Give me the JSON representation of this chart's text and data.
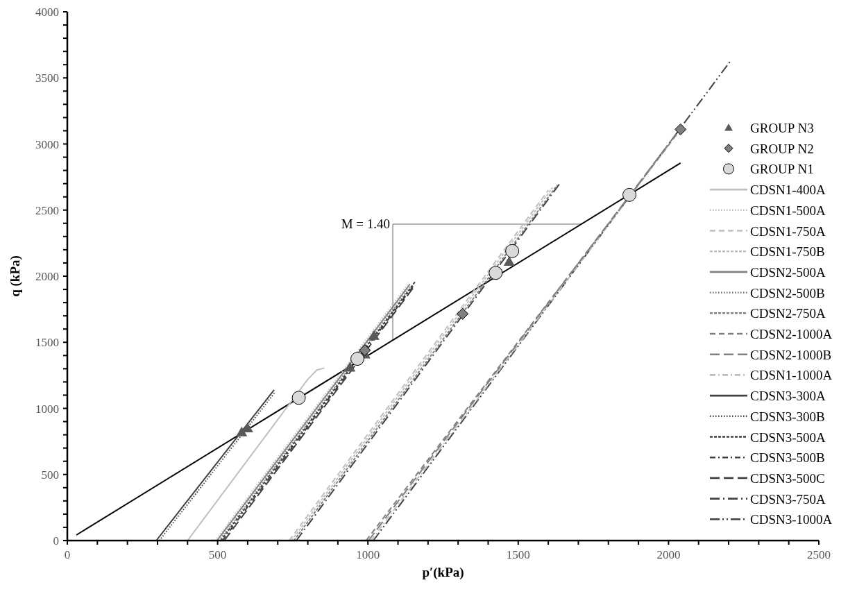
{
  "chart_data": {
    "type": "line",
    "xlabel": "p′(kPa)",
    "ylabel": "q (kPa)",
    "xlim": [
      0,
      2500
    ],
    "ylim": [
      0,
      4000
    ],
    "xticks": [
      0,
      {
        "value": 100,
        "label": null
      },
      {
        "value": 200,
        "label": null
      },
      {
        "value": 300,
        "label": null
      },
      {
        "value": 400,
        "label": null
      },
      500,
      {
        "value": 600,
        "label": null
      },
      {
        "value": 700,
        "label": null
      },
      {
        "value": 800,
        "label": null
      },
      {
        "value": 900,
        "label": null
      },
      1000,
      {
        "value": 1100,
        "label": null
      },
      {
        "value": 1200,
        "label": null
      },
      {
        "value": 1300,
        "label": null
      },
      {
        "value": 1400,
        "label": null
      },
      1500,
      {
        "value": 1600,
        "label": null
      },
      {
        "value": 1700,
        "label": null
      },
      {
        "value": 1800,
        "label": null
      },
      {
        "value": 1900,
        "label": null
      },
      2000,
      {
        "value": 2100,
        "label": null
      },
      {
        "value": 2200,
        "label": null
      },
      {
        "value": 2300,
        "label": null
      },
      {
        "value": 2400,
        "label": null
      },
      2500
    ],
    "yticks": [
      0,
      {
        "value": 100,
        "label": null
      },
      {
        "value": 200,
        "label": null
      },
      {
        "value": 300,
        "label": null
      },
      {
        "value": 400,
        "label": null
      },
      500,
      {
        "value": 600,
        "label": null
      },
      {
        "value": 700,
        "label": null
      },
      {
        "value": 800,
        "label": null
      },
      {
        "value": 900,
        "label": null
      },
      1000,
      {
        "value": 1100,
        "label": null
      },
      {
        "value": 1200,
        "label": null
      },
      {
        "value": 1300,
        "label": null
      },
      {
        "value": 1400,
        "label": null
      },
      1500,
      {
        "value": 1600,
        "label": null
      },
      {
        "value": 1700,
        "label": null
      },
      {
        "value": 1800,
        "label": null
      },
      {
        "value": 1900,
        "label": null
      },
      2000,
      {
        "value": 2100,
        "label": null
      },
      {
        "value": 2200,
        "label": null
      },
      {
        "value": 2300,
        "label": null
      },
      {
        "value": 2400,
        "label": null
      },
      2500,
      {
        "value": 2600,
        "label": null
      },
      {
        "value": 2700,
        "label": null
      },
      {
        "value": 2800,
        "label": null
      },
      {
        "value": 2900,
        "label": null
      },
      3000,
      {
        "value": 3100,
        "label": null
      },
      {
        "value": 3200,
        "label": null
      },
      {
        "value": 3300,
        "label": null
      },
      {
        "value": 3400,
        "label": null
      },
      3500,
      {
        "value": 3600,
        "label": null
      },
      {
        "value": 3700,
        "label": null
      },
      {
        "value": 3800,
        "label": null
      },
      {
        "value": 3900,
        "label": null
      },
      4000
    ],
    "grid": false,
    "legend": "right",
    "annotations": [
      "M = 1.40"
    ],
    "series": [
      {
        "name": "GROUP N3",
        "type": "scatter",
        "marker": "triangle",
        "color": "#595959",
        "x": [
          580,
          600,
          940,
          990,
          1020,
          1470
        ],
        "values": [
          820,
          850,
          1310,
          1410,
          1550,
          2110
        ]
      },
      {
        "name": "GROUP N2",
        "type": "scatter",
        "marker": "diamond",
        "color": "#7f7f7f",
        "x": [
          990,
          1315,
          2040
        ],
        "values": [
          1440,
          1715,
          3110
        ]
      },
      {
        "name": "GROUP N1",
        "type": "scatter",
        "marker": "circle",
        "color": "#d9d9d9",
        "x": [
          770,
          965,
          1425,
          1480,
          1870
        ],
        "values": [
          1080,
          1375,
          2025,
          2190,
          2615
        ]
      },
      {
        "name": "CDSN1-400A",
        "color": "#bfbfbf",
        "line_style": "solid",
        "x": [
          400,
          800,
          830,
          855
        ],
        "values": [
          0,
          1220,
          1290,
          1305
        ]
      },
      {
        "name": "CDSN1-500A",
        "color": "#bfbfbf",
        "line_style": "dotted",
        "x": [
          492,
          1136
        ],
        "values": [
          0,
          1950
        ]
      },
      {
        "name": "CDSN1-750A",
        "color": "#bfbfbf",
        "line_style": "dashed",
        "x": [
          738,
          1600
        ],
        "values": [
          0,
          2650
        ]
      },
      {
        "name": "CDSN1-750B",
        "color": "#bfbfbf",
        "line_style": "shortdash",
        "x": [
          746,
          1614
        ],
        "values": [
          0,
          2670
        ]
      },
      {
        "name": "CDSN2-500A",
        "color": "#808080",
        "line_style": "solid",
        "x": [
          498,
          1140
        ],
        "values": [
          0,
          1940
        ]
      },
      {
        "name": "CDSN2-500B",
        "color": "#808080",
        "line_style": "dotted",
        "x": [
          504,
          1140
        ],
        "values": [
          0,
          1920
        ]
      },
      {
        "name": "CDSN2-750A",
        "color": "#808080",
        "line_style": "shortdash",
        "x": [
          754,
          1630
        ],
        "values": [
          0,
          2690
        ]
      },
      {
        "name": "CDSN2-1000A",
        "color": "#808080",
        "line_style": "dashed",
        "x": [
          994,
          2040
        ],
        "values": [
          0,
          3110
        ]
      },
      {
        "name": "CDSN2-1000B",
        "color": "#808080",
        "line_style": "longdash",
        "x": [
          1002,
          2030
        ],
        "values": [
          0,
          3090
        ]
      },
      {
        "name": "CDSN1-1000A",
        "color": "#bfbfbf",
        "line_style": "dashdot",
        "x": [
          1010,
          2000
        ],
        "values": [
          0,
          2990
        ]
      },
      {
        "name": "CDSN3-300A",
        "color": "#404040",
        "line_style": "solid",
        "x": [
          296,
          688
        ],
        "values": [
          0,
          1140
        ]
      },
      {
        "name": "CDSN3-300B",
        "color": "#404040",
        "line_style": "dotted",
        "x": [
          306,
          692
        ],
        "values": [
          0,
          1125
        ]
      },
      {
        "name": "CDSN3-500A",
        "color": "#404040",
        "line_style": "shortdash",
        "x": [
          510,
          1157
        ],
        "values": [
          0,
          1958
        ]
      },
      {
        "name": "CDSN3-500B",
        "color": "#404040",
        "line_style": "dashdot",
        "x": [
          516,
          1152
        ],
        "values": [
          0,
          1930
        ]
      },
      {
        "name": "CDSN3-500C",
        "color": "#404040",
        "line_style": "longdash",
        "x": [
          522,
          1150
        ],
        "values": [
          0,
          1910
        ]
      },
      {
        "name": "CDSN3-750A",
        "color": "#404040",
        "line_style": "longdashdot",
        "x": [
          762,
          1641
        ],
        "values": [
          0,
          2709
        ]
      },
      {
        "name": "CDSN3-1000A",
        "color": "#404040",
        "line_style": "longdashdotdot",
        "x": [
          1018,
          2204
        ],
        "values": [
          0,
          3622
        ]
      },
      {
        "type": "line",
        "color": "#000000",
        "line_style": "solid",
        "x": [
          30,
          2040
        ],
        "values": [
          42,
          2856
        ]
      }
    ]
  }
}
